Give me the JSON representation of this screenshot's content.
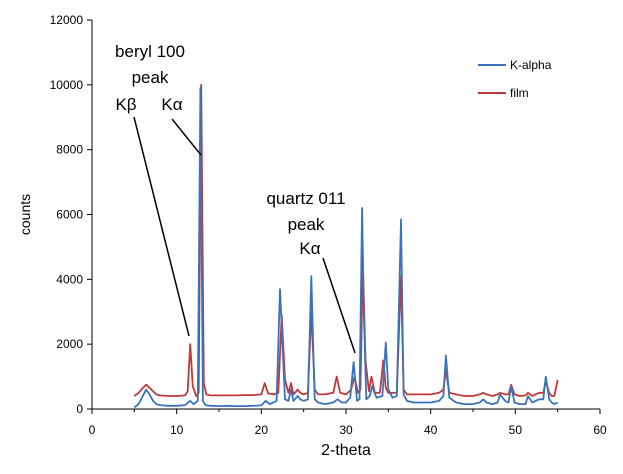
{
  "chart_data": {
    "type": "line",
    "xlabel": "2-theta",
    "ylabel": "counts",
    "xlim": [
      0,
      60
    ],
    "ylim": [
      0,
      12000
    ],
    "xticks": [
      "0",
      "10",
      "20",
      "30",
      "40",
      "50",
      "60"
    ],
    "yticks": [
      "0",
      "2000",
      "4000",
      "6000",
      "8000",
      "10000",
      "12000"
    ],
    "grid": false,
    "legend_position": "top-right",
    "colors": {
      "K-alpha": "#3b73b9",
      "film": "#c0393b"
    },
    "series": [
      {
        "name": "K-alpha",
        "x": [
          5,
          5.5,
          6,
          6.4,
          6.8,
          7.2,
          7.6,
          8,
          9,
          10,
          11,
          11.6,
          12,
          12.5,
          12.8,
          13.1,
          13.4,
          14,
          15,
          16,
          17,
          18,
          19,
          20,
          20.5,
          21,
          21.8,
          22.2,
          22.5,
          22.8,
          23.2,
          23.5,
          23.8,
          24.3,
          24.6,
          25,
          25.5,
          25.9,
          26.3,
          26.7,
          27.5,
          28.5,
          29,
          29.5,
          30,
          30.5,
          30.9,
          31.3,
          31.6,
          31.9,
          32.1,
          32.4,
          32.8,
          33.1,
          33.6,
          34.3,
          34.7,
          35,
          35.5,
          36,
          36.5,
          36.8,
          37.2,
          38,
          39,
          40,
          41,
          41.5,
          41.8,
          42.2,
          43,
          44,
          45,
          45.8,
          46.2,
          46.6,
          47.3,
          47.9,
          48.2,
          48.8,
          49.2,
          49.5,
          49.9,
          50.5,
          51.2,
          51.5,
          52,
          52.8,
          53.3,
          53.6,
          54,
          54.3,
          54.6,
          55
        ],
        "values": [
          50,
          150,
          400,
          600,
          450,
          250,
          150,
          120,
          100,
          100,
          120,
          250,
          150,
          250,
          9900,
          250,
          120,
          100,
          90,
          100,
          90,
          90,
          100,
          110,
          250,
          150,
          250,
          3700,
          2000,
          300,
          250,
          600,
          250,
          400,
          300,
          250,
          300,
          4100,
          300,
          200,
          150,
          200,
          300,
          200,
          200,
          350,
          1450,
          250,
          300,
          6200,
          3000,
          300,
          400,
          700,
          350,
          400,
          2050,
          600,
          350,
          400,
          5850,
          450,
          250,
          200,
          200,
          200,
          250,
          400,
          1650,
          350,
          200,
          150,
          150,
          200,
          300,
          200,
          150,
          200,
          450,
          250,
          200,
          700,
          200,
          150,
          150,
          400,
          200,
          300,
          300,
          1000,
          300,
          200,
          150,
          200
        ]
      },
      {
        "name": "film",
        "x": [
          5,
          5.5,
          6,
          6.4,
          6.8,
          7.2,
          7.6,
          8,
          9,
          10,
          11,
          11.3,
          11.6,
          11.9,
          12.3,
          12.6,
          12.9,
          13.2,
          13.5,
          14,
          15,
          16,
          17,
          18,
          19,
          20,
          20.4,
          20.8,
          21.5,
          22,
          22.4,
          22.8,
          23.2,
          23.5,
          23.8,
          24.3,
          24.6,
          25,
          25.5,
          25.9,
          26.3,
          26.7,
          27.5,
          28.5,
          28.9,
          29.3,
          30,
          30.6,
          31.0,
          31.4,
          31.7,
          32.0,
          32.3,
          32.7,
          33.0,
          33.4,
          34,
          34.4,
          34.7,
          35.0,
          35.5,
          36,
          36.5,
          36.8,
          37.2,
          38,
          39,
          40,
          41,
          41.5,
          41.8,
          42.2,
          43,
          44,
          45,
          45.8,
          46.2,
          46.6,
          47.3,
          47.9,
          48.2,
          48.8,
          49.2,
          49.5,
          49.9,
          50.5,
          51.2,
          51.5,
          52,
          52.8,
          53.3,
          53.6,
          54,
          54.3,
          54.6,
          55
        ],
        "values": [
          400,
          500,
          650,
          750,
          650,
          550,
          450,
          420,
          400,
          400,
          420,
          550,
          2000,
          700,
          400,
          500,
          10000,
          800,
          450,
          420,
          420,
          420,
          420,
          430,
          430,
          450,
          800,
          480,
          450,
          500,
          2900,
          900,
          500,
          800,
          450,
          600,
          500,
          450,
          500,
          3000,
          600,
          450,
          450,
          500,
          1000,
          500,
          450,
          600,
          1000,
          500,
          600,
          4500,
          1500,
          550,
          1000,
          500,
          500,
          1500,
          650,
          500,
          500,
          500,
          4100,
          600,
          450,
          450,
          450,
          450,
          500,
          600,
          1200,
          500,
          450,
          400,
          400,
          450,
          500,
          450,
          400,
          450,
          500,
          450,
          450,
          750,
          450,
          400,
          420,
          500,
          400,
          500,
          500,
          850,
          500,
          400,
          400,
          900
        ]
      }
    ],
    "annotations": [
      {
        "lines": [
          "beryl 100",
          "peak"
        ]
      },
      {
        "lines": [
          "Kβ"
        ]
      },
      {
        "lines": [
          "Kα"
        ]
      },
      {
        "lines": [
          "quartz 011",
          "peak",
          "Kα"
        ]
      }
    ]
  }
}
